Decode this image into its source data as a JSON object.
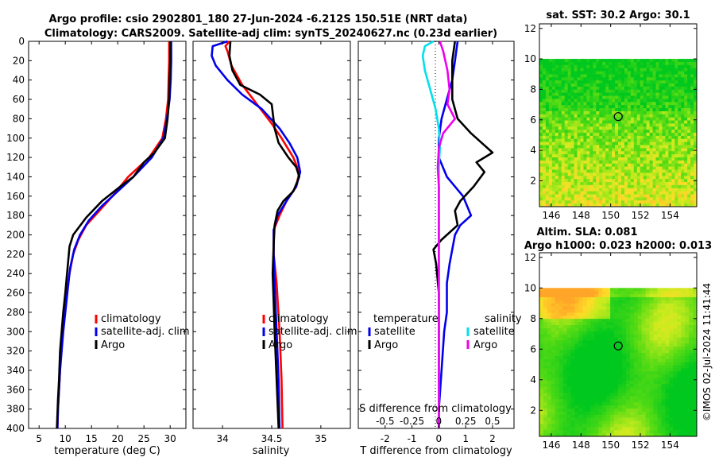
{
  "title_line1": "Argo profile: csio 2902801_180 27-Jun-2024 -6.212S 150.51E (NRT data)",
  "title_line2": "Climatology: CARS2009. Satellite-adj clim: synTS_20240627.nc (0.23d earlier)",
  "watermark": "©IMOS 02-Jul-2024 11:41:44",
  "colors": {
    "climatology": "#ff0000",
    "satellite": "#0000ee",
    "argo": "#000000",
    "sal_sat": "#00e0ee",
    "sal_argo": "#ee00ee"
  },
  "chart_data": [
    {
      "type": "line",
      "id": "temperature",
      "xlabel": "temperature (deg C)",
      "ylabel": "",
      "xlim": [
        3,
        33
      ],
      "ylim": [
        400,
        0
      ],
      "xticks": [
        "5",
        "10",
        "15",
        "20",
        "25",
        "30"
      ],
      "xtick_values": [
        5,
        10,
        15,
        20,
        25,
        30
      ],
      "yticks": [
        "0",
        "20",
        "40",
        "60",
        "80",
        "100",
        "120",
        "140",
        "160",
        "180",
        "200",
        "220",
        "240",
        "260",
        "280",
        "300",
        "320",
        "340",
        "360",
        "380",
        "400"
      ],
      "ytick_values": [
        0,
        20,
        40,
        60,
        80,
        100,
        120,
        140,
        160,
        180,
        200,
        220,
        240,
        260,
        280,
        300,
        320,
        340,
        360,
        380,
        400
      ],
      "legend": [
        "climatology",
        "satellite-adj. clim",
        "Argo"
      ],
      "series": [
        {
          "name": "climatology",
          "color": "#ff0000",
          "points": [
            [
              29.8,
              0
            ],
            [
              29.8,
              20
            ],
            [
              29.7,
              40
            ],
            [
              29.6,
              60
            ],
            [
              29.2,
              80
            ],
            [
              28.5,
              100
            ],
            [
              26,
              120
            ],
            [
              22,
              140
            ],
            [
              19,
              160
            ],
            [
              16.5,
              175
            ],
            [
              14,
              190
            ],
            [
              12.5,
              205
            ],
            [
              11.5,
              220
            ],
            [
              10.8,
              240
            ],
            [
              10.3,
              260
            ],
            [
              9.9,
              280
            ],
            [
              9.5,
              300
            ],
            [
              9.2,
              320
            ],
            [
              9,
              340
            ],
            [
              8.8,
              360
            ],
            [
              8.6,
              380
            ],
            [
              8.5,
              400
            ]
          ]
        },
        {
          "name": "satellite-adj. clim",
          "color": "#0000ee",
          "points": [
            [
              30.2,
              0
            ],
            [
              30.2,
              20
            ],
            [
              30.1,
              40
            ],
            [
              29.9,
              60
            ],
            [
              29.4,
              80
            ],
            [
              28.7,
              100
            ],
            [
              26.5,
              120
            ],
            [
              23,
              140
            ],
            [
              20,
              155
            ],
            [
              17,
              170
            ],
            [
              14.5,
              185
            ],
            [
              12.8,
              200
            ],
            [
              11.7,
              215
            ],
            [
              10.9,
              235
            ],
            [
              10.4,
              260
            ],
            [
              10,
              280
            ],
            [
              9.6,
              300
            ],
            [
              9.3,
              320
            ],
            [
              9,
              340
            ],
            [
              8.8,
              360
            ],
            [
              8.6,
              380
            ],
            [
              8.5,
              400
            ]
          ]
        },
        {
          "name": "Argo",
          "color": "#000000",
          "points": [
            [
              30,
              0
            ],
            [
              30,
              20
            ],
            [
              29.9,
              40
            ],
            [
              29.8,
              60
            ],
            [
              29.5,
              80
            ],
            [
              29,
              100
            ],
            [
              27,
              115
            ],
            [
              25,
              125
            ],
            [
              23,
              140
            ],
            [
              20.5,
              150
            ],
            [
              17,
              165
            ],
            [
              14,
              182
            ],
            [
              11.5,
              200
            ],
            [
              10.8,
              212
            ],
            [
              10.5,
              230
            ],
            [
              10,
              260
            ],
            [
              9.6,
              280
            ],
            [
              9.3,
              300
            ],
            [
              9,
              320
            ],
            [
              8.8,
              350
            ],
            [
              8.6,
              370
            ],
            [
              8.4,
              400
            ]
          ]
        }
      ]
    },
    {
      "type": "line",
      "id": "salinity",
      "xlabel": "salinity",
      "xlim": [
        33.7,
        35.3
      ],
      "ylim": [
        400,
        0
      ],
      "xticks": [
        "34",
        "34.5",
        "35"
      ],
      "xtick_values": [
        34,
        34.5,
        35
      ],
      "legend": [
        "climatology",
        "satellite-adj. clim",
        "Argo"
      ],
      "series": [
        {
          "name": "climatology",
          "color": "#ff0000",
          "points": [
            [
              34.07,
              0
            ],
            [
              34.03,
              5
            ],
            [
              34.05,
              10
            ],
            [
              34.09,
              25
            ],
            [
              34.2,
              45
            ],
            [
              34.35,
              65
            ],
            [
              34.5,
              85
            ],
            [
              34.6,
              100
            ],
            [
              34.72,
              120
            ],
            [
              34.78,
              135
            ],
            [
              34.75,
              150
            ],
            [
              34.65,
              165
            ],
            [
              34.58,
              180
            ],
            [
              34.52,
              195
            ],
            [
              34.52,
              220
            ],
            [
              34.55,
              250
            ],
            [
              34.58,
              300
            ],
            [
              34.6,
              350
            ],
            [
              34.61,
              400
            ]
          ]
        },
        {
          "name": "satellite-adj. clim",
          "color": "#0000ee",
          "points": [
            [
              34.05,
              0
            ],
            [
              33.9,
              5
            ],
            [
              33.89,
              15
            ],
            [
              33.93,
              25
            ],
            [
              34.05,
              40
            ],
            [
              34.2,
              55
            ],
            [
              34.4,
              70
            ],
            [
              34.58,
              90
            ],
            [
              34.68,
              105
            ],
            [
              34.76,
              120
            ],
            [
              34.79,
              135
            ],
            [
              34.75,
              150
            ],
            [
              34.65,
              165
            ],
            [
              34.56,
              180
            ],
            [
              34.52,
              195
            ],
            [
              34.52,
              220
            ],
            [
              34.53,
              250
            ],
            [
              34.55,
              300
            ],
            [
              34.57,
              350
            ],
            [
              34.58,
              400
            ]
          ]
        },
        {
          "name": "Argo",
          "color": "#000000",
          "points": [
            [
              34.08,
              0
            ],
            [
              34.07,
              15
            ],
            [
              34.1,
              30
            ],
            [
              34.18,
              45
            ],
            [
              34.38,
              55
            ],
            [
              34.5,
              65
            ],
            [
              34.53,
              90
            ],
            [
              34.57,
              105
            ],
            [
              34.67,
              120
            ],
            [
              34.75,
              130
            ],
            [
              34.78,
              140
            ],
            [
              34.72,
              155
            ],
            [
              34.62,
              165
            ],
            [
              34.56,
              175
            ],
            [
              34.53,
              190
            ],
            [
              34.52,
              210
            ],
            [
              34.51,
              240
            ],
            [
              34.52,
              270
            ],
            [
              34.53,
              300
            ],
            [
              34.55,
              350
            ],
            [
              34.57,
              400
            ]
          ]
        }
      ]
    },
    {
      "type": "line",
      "id": "difference",
      "xlabel": "T difference from climatology",
      "xlabel_top": "S difference from climatology",
      "xlim": [
        -3,
        2.8
      ],
      "ylim": [
        400,
        0
      ],
      "xticks": [
        "-2",
        "-1",
        "0",
        "1",
        "2"
      ],
      "xtick_values": [
        -2,
        -1,
        0,
        1,
        2
      ],
      "s_ticks": [
        "-0.5",
        "-0.25",
        "0",
        "0.25",
        "0.5"
      ],
      "s_tick_values": [
        -0.5,
        -0.25,
        0,
        0.25,
        0.5
      ],
      "legend_temperature": [
        "temperature",
        "satellite",
        "Argo"
      ],
      "legend_salinity": [
        "salinity",
        "satellite",
        "Argo"
      ],
      "series": [
        {
          "name": "T satellite",
          "color": "#0000ee",
          "unit": "T",
          "points": [
            [
              0.7,
              0
            ],
            [
              0.6,
              20
            ],
            [
              0.5,
              40
            ],
            [
              0.3,
              60
            ],
            [
              0.1,
              80
            ],
            [
              0,
              100
            ],
            [
              0,
              120
            ],
            [
              0.3,
              140
            ],
            [
              0.9,
              160
            ],
            [
              1.2,
              180
            ],
            [
              0.8,
              190
            ],
            [
              0.6,
              200
            ],
            [
              0.5,
              215
            ],
            [
              0.4,
              230
            ],
            [
              0.3,
              250
            ],
            [
              0.3,
              280
            ],
            [
              0.2,
              300
            ],
            [
              0.1,
              340
            ],
            [
              0,
              380
            ],
            [
              0,
              400
            ]
          ]
        },
        {
          "name": "T Argo",
          "color": "#000000",
          "unit": "T",
          "points": [
            [
              0.6,
              0
            ],
            [
              0.5,
              20
            ],
            [
              0.5,
              40
            ],
            [
              0.5,
              60
            ],
            [
              0.7,
              80
            ],
            [
              1.2,
              95
            ],
            [
              1.6,
              105
            ],
            [
              2,
              115
            ],
            [
              1.4,
              125
            ],
            [
              1.7,
              135
            ],
            [
              1.3,
              150
            ],
            [
              0.8,
              165
            ],
            [
              0.6,
              175
            ],
            [
              0.7,
              190
            ],
            [
              0.1,
              205
            ],
            [
              -0.2,
              215
            ],
            [
              -0.1,
              230
            ],
            [
              0,
              260
            ],
            [
              0,
              300
            ],
            [
              0,
              340
            ],
            [
              0,
              400
            ]
          ]
        },
        {
          "name": "S satellite",
          "color": "#00e0ee",
          "unit": "S",
          "points": [
            [
              -0.05,
              0
            ],
            [
              -0.13,
              5
            ],
            [
              -0.15,
              15
            ],
            [
              -0.13,
              30
            ],
            [
              -0.08,
              50
            ],
            [
              -0.03,
              70
            ],
            [
              0,
              90
            ],
            [
              0.01,
              110
            ],
            [
              0,
              130
            ],
            [
              0,
              150
            ],
            [
              0,
              170
            ],
            [
              0,
              200
            ],
            [
              0,
              250
            ],
            [
              0,
              300
            ],
            [
              0,
              350
            ],
            [
              0,
              400
            ]
          ]
        },
        {
          "name": "S Argo",
          "color": "#ee00ee",
          "unit": "S",
          "points": [
            [
              0.01,
              0
            ],
            [
              0.04,
              10
            ],
            [
              0.08,
              30
            ],
            [
              0.1,
              50
            ],
            [
              0.08,
              65
            ],
            [
              0.15,
              80
            ],
            [
              0.04,
              95
            ],
            [
              0,
              110
            ],
            [
              -0.01,
              130
            ],
            [
              0,
              150
            ],
            [
              0,
              170
            ],
            [
              0,
              200
            ],
            [
              0,
              250
            ],
            [
              0,
              300
            ],
            [
              0,
              350
            ],
            [
              0,
              400
            ]
          ]
        }
      ]
    }
  ],
  "maps": [
    {
      "id": "sst-map",
      "title": "sat. SST: 30.2 Argo: 30.1",
      "xticks": [
        "146",
        "148",
        "150",
        "152",
        "154"
      ],
      "yticks": [
        "2",
        "4",
        "6",
        "8",
        "10",
        "12"
      ],
      "xlim": [
        145.2,
        155.8
      ],
      "ylim": [
        0.3,
        12.3
      ],
      "argo_lon": 150.51,
      "argo_lat": 6.212
    },
    {
      "id": "sla-map",
      "title_line1": "Altim. SLA: 0.081",
      "title_line2": "Argo h1000: 0.023 h2000: 0.013",
      "xticks": [
        "146",
        "148",
        "150",
        "152",
        "154"
      ],
      "yticks": [
        "2",
        "4",
        "6",
        "8",
        "10",
        "12"
      ],
      "xlim": [
        145.2,
        155.8
      ],
      "ylim": [
        0.3,
        12.3
      ],
      "argo_lon": 150.51,
      "argo_lat": 6.212
    }
  ]
}
